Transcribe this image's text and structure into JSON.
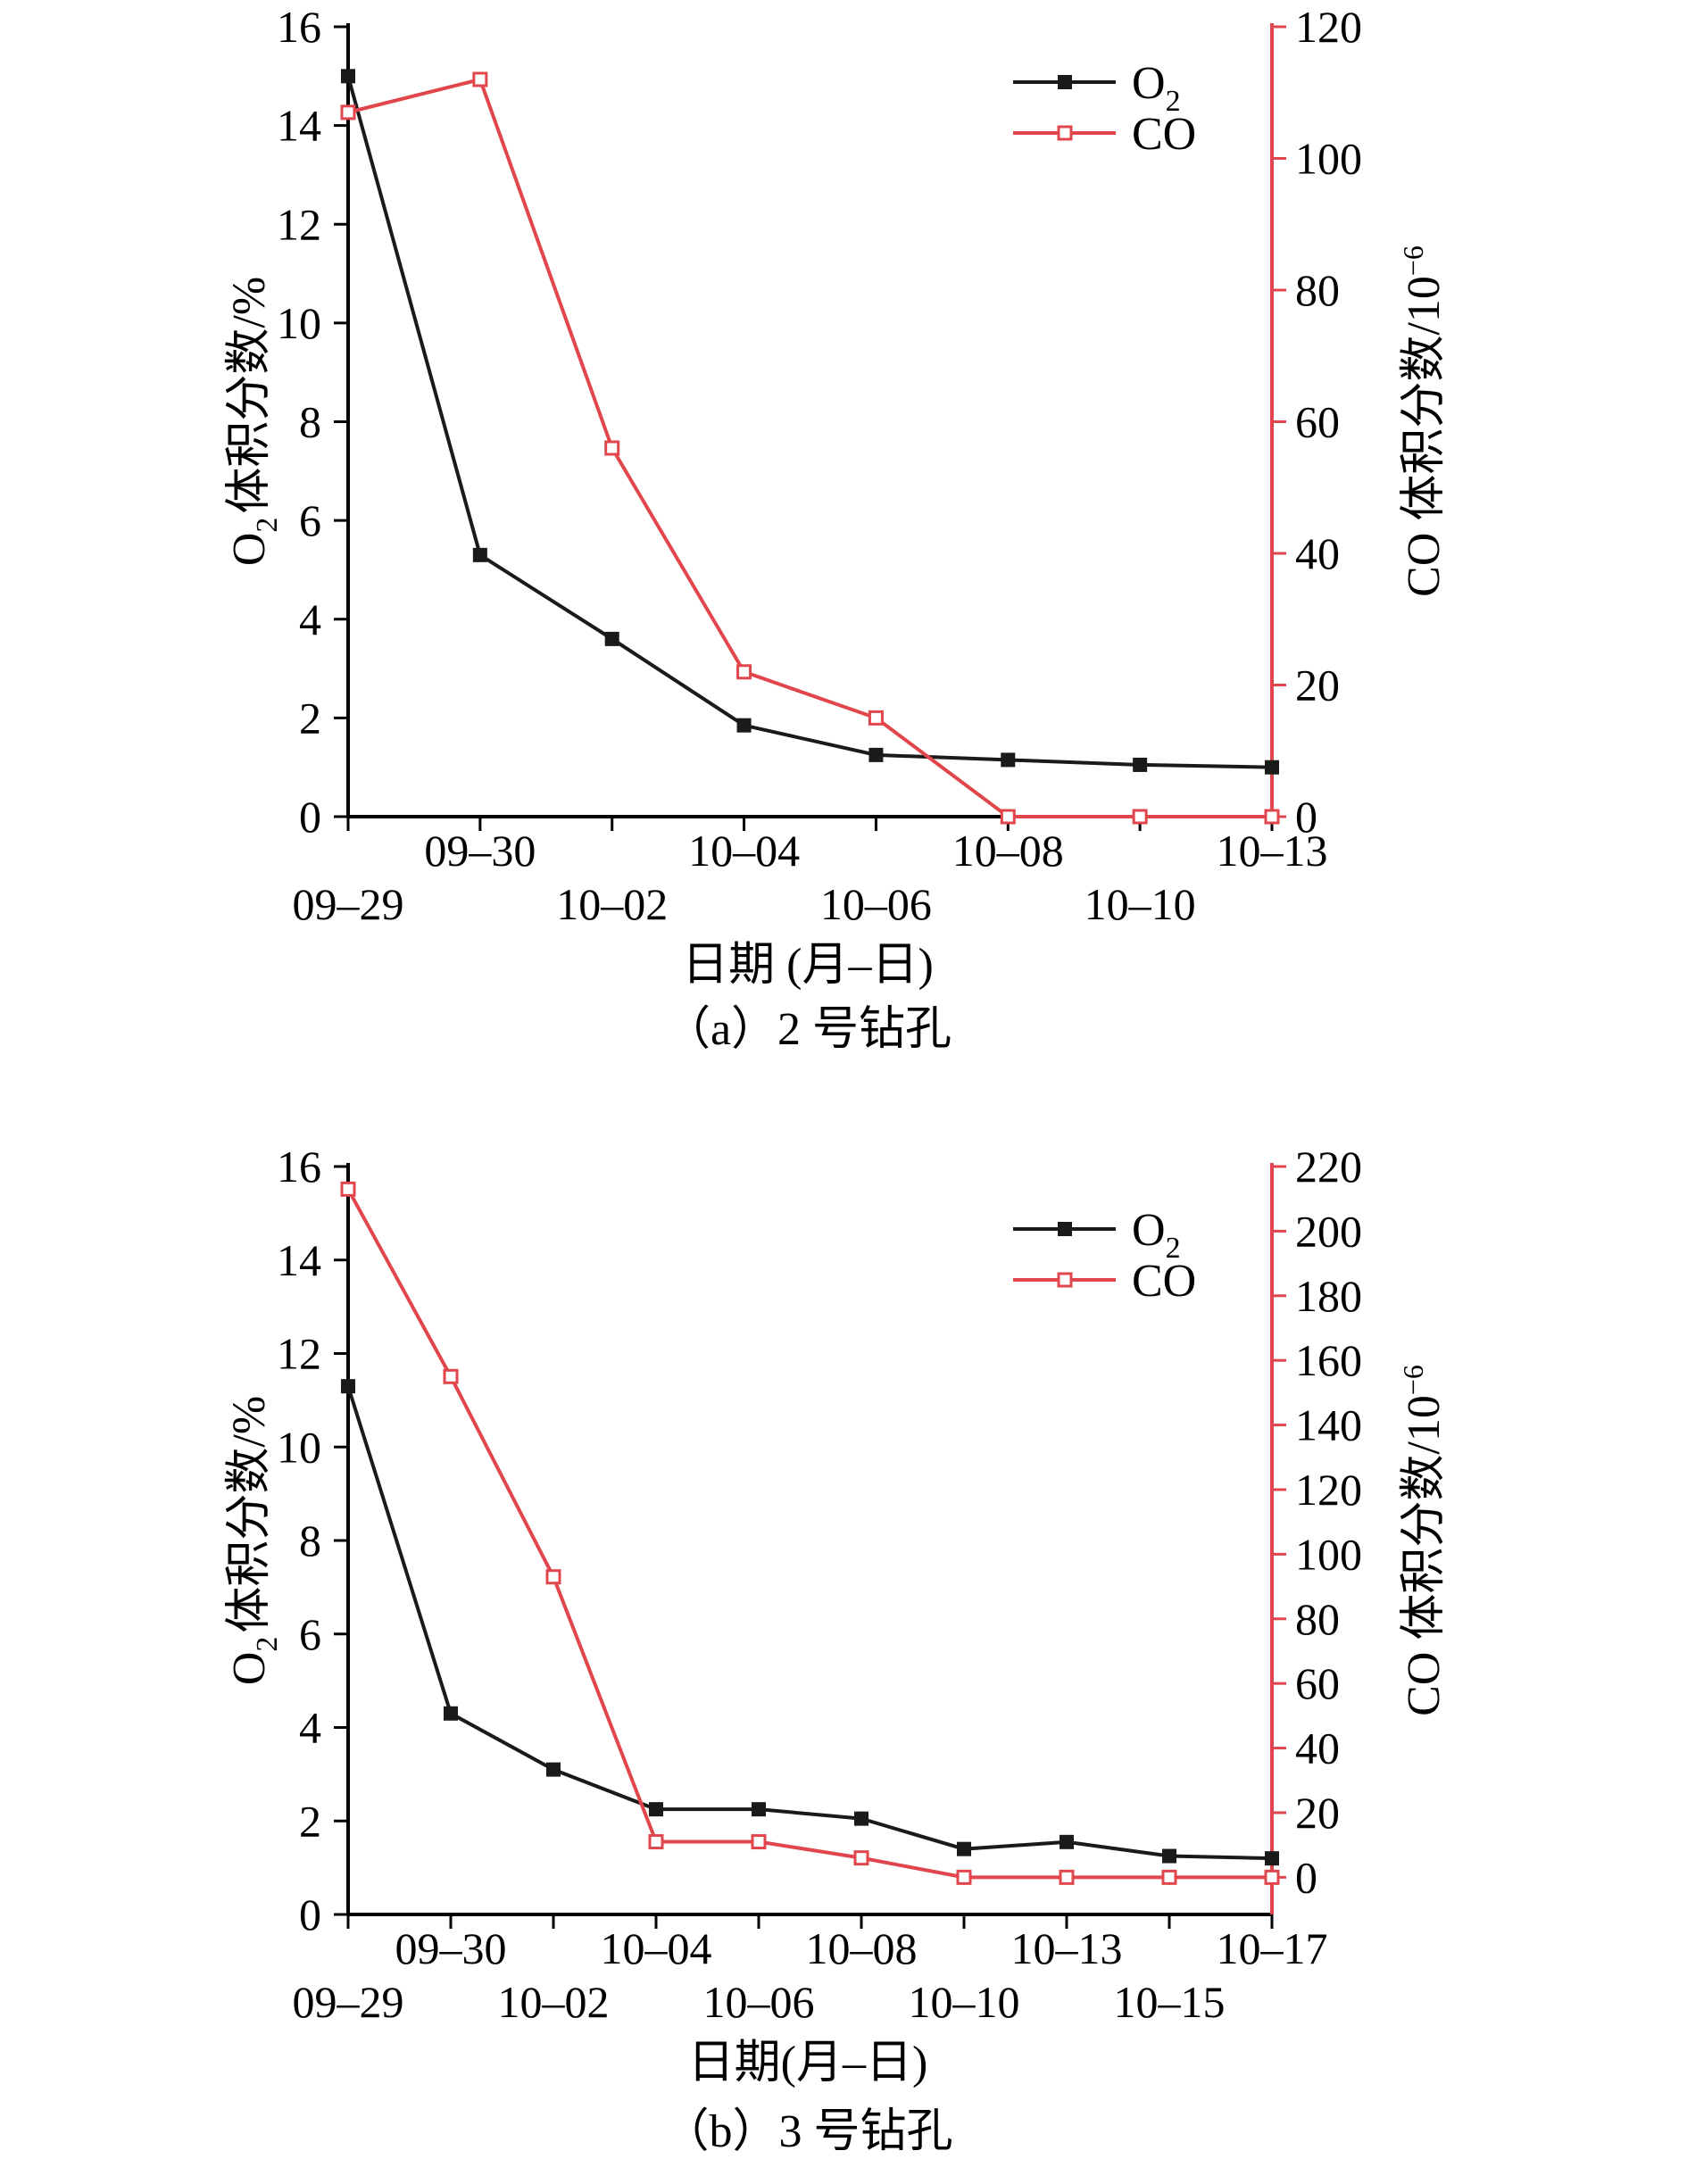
{
  "colors": {
    "o2": "#1a1a1a",
    "co": "#e0464c",
    "axis": "#000000"
  },
  "chart_data": [
    {
      "type": "line",
      "caption": "（a）2 号钻孔",
      "xlabel": "日期 (月–日)",
      "ylabel_left_main": "O",
      "ylabel_left_sub": "2",
      "ylabel_left_rest": "体积分数/%",
      "ylabel_right_main": "CO 体积分数/10",
      "ylabel_right_sup": "−6",
      "ylim_left": [
        0,
        16
      ],
      "ylim_right": [
        0,
        120
      ],
      "yticks_left": [
        "0",
        "2",
        "4",
        "6",
        "8",
        "10",
        "12",
        "14",
        "16"
      ],
      "yticks_right": [
        "0",
        "20",
        "40",
        "60",
        "80",
        "100",
        "120"
      ],
      "x": [
        "09–29",
        "09–30",
        "10–02",
        "10–04",
        "10–06",
        "10–08",
        "10–10",
        "10–13"
      ],
      "series": [
        {
          "name_main": "O",
          "name_sub": "2",
          "axis": "left",
          "values": [
            15.0,
            5.3,
            3.6,
            1.85,
            1.25,
            1.15,
            1.05,
            1.0
          ]
        },
        {
          "name_main": "CO",
          "name_sub": "",
          "axis": "right",
          "values": [
            107,
            112,
            56,
            22,
            15,
            0,
            0,
            0
          ]
        }
      ],
      "legend_position": "top-right"
    },
    {
      "type": "line",
      "caption": "（b）3 号钻孔",
      "xlabel": "日期(月–日)",
      "ylabel_left_main": "O",
      "ylabel_left_sub": "2",
      "ylabel_left_rest": "体积分数/%",
      "ylabel_right_main": "CO 体积分数/10",
      "ylabel_right_sup": "−6",
      "ylim_left": [
        0,
        16
      ],
      "ylim_right": [
        -11.5,
        220
      ],
      "yticks_left": [
        "0",
        "2",
        "4",
        "6",
        "8",
        "10",
        "12",
        "14",
        "16"
      ],
      "yticks_right": [
        "0",
        "20",
        "40",
        "60",
        "80",
        "100",
        "120",
        "140",
        "160",
        "180",
        "200",
        "220"
      ],
      "x": [
        "09–29",
        "09–30",
        "10–02",
        "10–04",
        "10–06",
        "10–08",
        "10–10",
        "10–13",
        "10–15",
        "10–17"
      ],
      "series": [
        {
          "name_main": "O",
          "name_sub": "2",
          "axis": "left",
          "values": [
            11.3,
            4.3,
            3.1,
            2.25,
            2.25,
            2.05,
            1.4,
            1.55,
            1.25,
            1.2
          ]
        },
        {
          "name_main": "CO",
          "name_sub": "",
          "axis": "right",
          "values": [
            213,
            155,
            93,
            11,
            11,
            6,
            0,
            0,
            0,
            0
          ]
        }
      ],
      "legend_position": "top-right"
    }
  ]
}
